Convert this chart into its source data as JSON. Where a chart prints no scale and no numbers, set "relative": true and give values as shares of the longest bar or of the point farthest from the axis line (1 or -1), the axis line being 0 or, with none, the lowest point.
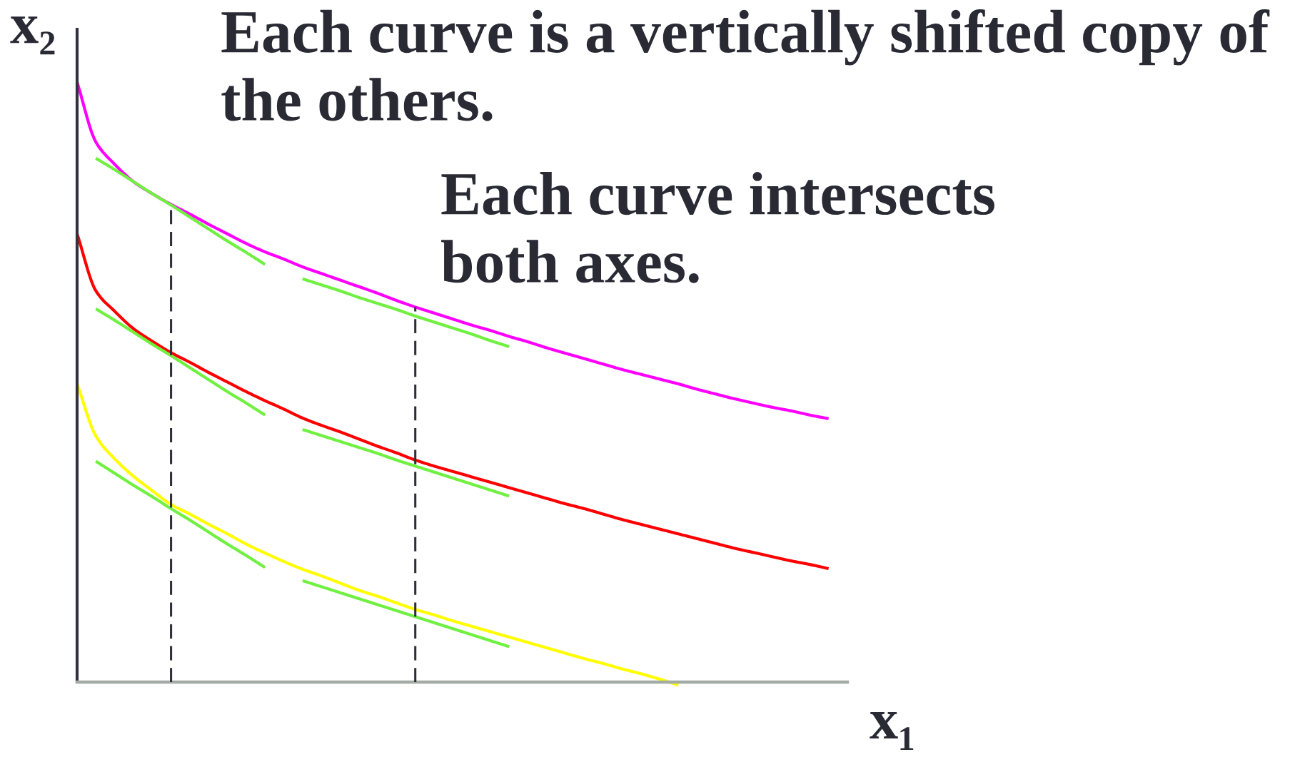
{
  "chart_data": {
    "type": "line",
    "relative": true,
    "xlabel": "x₁",
    "ylabel": "x₂",
    "line_style": "solid",
    "annotations": [
      "Each curve is a vertically shifted copy of the others.",
      "Each curve intersects both axes."
    ],
    "categories": [
      null,
      null,
      null,
      null,
      null,
      null,
      null,
      null,
      null,
      null,
      null,
      null,
      null,
      null,
      null,
      null,
      null,
      null,
      null,
      null,
      null,
      null,
      null,
      null,
      null,
      null,
      null,
      null,
      null,
      null,
      null,
      null,
      null,
      null,
      null,
      null,
      null,
      null,
      null,
      null,
      null,
      null
    ],
    "series": [
      {
        "color": "#ff00ff",
        "values": [
          1.0,
          0.9,
          0.863,
          0.834,
          0.814,
          0.796,
          0.78,
          0.763,
          0.747,
          0.731,
          0.717,
          0.705,
          0.692,
          0.681,
          0.67,
          0.659,
          0.648,
          0.636,
          0.625,
          0.615,
          0.605,
          0.595,
          0.586,
          0.576,
          0.567,
          0.557,
          0.548,
          0.539,
          0.53,
          0.521,
          0.513,
          0.505,
          0.497,
          0.488,
          0.48,
          0.472,
          0.465,
          0.458,
          0.452,
          0.445,
          0.439,
          null
        ]
      },
      {
        "color": "#ff0000",
        "values": [
          0.747,
          0.652,
          0.618,
          0.589,
          0.568,
          0.549,
          0.533,
          0.516,
          0.5,
          0.484,
          0.469,
          0.455,
          0.44,
          0.428,
          0.417,
          0.405,
          0.393,
          0.382,
          0.37,
          0.36,
          0.351,
          0.342,
          0.333,
          0.324,
          0.315,
          0.306,
          0.297,
          0.289,
          0.28,
          0.271,
          0.263,
          0.255,
          0.247,
          0.239,
          0.231,
          0.223,
          0.216,
          0.209,
          0.202,
          0.196,
          0.189,
          null
        ]
      },
      {
        "color": "#ffff00",
        "values": [
          0.497,
          0.41,
          0.372,
          0.343,
          0.319,
          0.296,
          0.28,
          0.263,
          0.247,
          0.23,
          0.215,
          0.201,
          0.188,
          0.177,
          0.165,
          0.153,
          0.143,
          0.132,
          0.121,
          0.112,
          0.102,
          0.093,
          0.084,
          0.075,
          0.066,
          0.057,
          0.048,
          0.039,
          0.031,
          0.022,
          0.014,
          0.005,
          -0.005,
          null,
          null,
          null,
          null,
          null,
          null,
          null,
          null,
          null
        ]
      },
      {
        "color": "#70f040",
        "values": [
          null,
          0.873,
          0.854,
          0.834,
          0.814,
          0.795,
          0.775,
          0.755,
          0.735,
          0.716,
          0.696,
          null,
          0.672,
          0.662,
          0.652,
          0.641,
          0.631,
          0.621,
          0.61,
          0.6,
          0.59,
          0.58,
          0.569,
          0.559,
          null,
          null,
          null,
          null,
          null,
          null,
          null,
          null,
          null,
          null,
          null,
          null,
          null,
          null,
          null,
          null,
          null,
          null
        ]
      },
      {
        "color": "#70f040",
        "values": [
          null,
          0.622,
          0.603,
          0.583,
          0.563,
          0.544,
          0.524,
          0.504,
          0.484,
          0.465,
          0.445,
          null,
          0.421,
          0.411,
          0.401,
          0.391,
          0.381,
          0.37,
          0.36,
          0.35,
          0.34,
          0.33,
          0.32,
          0.31,
          null,
          null,
          null,
          null,
          null,
          null,
          null,
          null,
          null,
          null,
          null,
          null,
          null,
          null,
          null,
          null,
          null,
          null
        ]
      },
      {
        "color": "#70f040",
        "values": [
          null,
          0.368,
          0.348,
          0.328,
          0.309,
          0.289,
          0.27,
          0.25,
          0.23,
          0.211,
          0.191,
          null,
          0.169,
          0.159,
          0.149,
          0.139,
          0.129,
          0.119,
          0.109,
          0.099,
          0.089,
          0.079,
          0.069,
          0.059,
          null,
          null,
          null,
          null,
          null,
          null,
          null,
          null,
          null,
          null,
          null,
          null,
          null,
          null,
          null,
          null,
          null,
          null
        ]
      }
    ]
  }
}
